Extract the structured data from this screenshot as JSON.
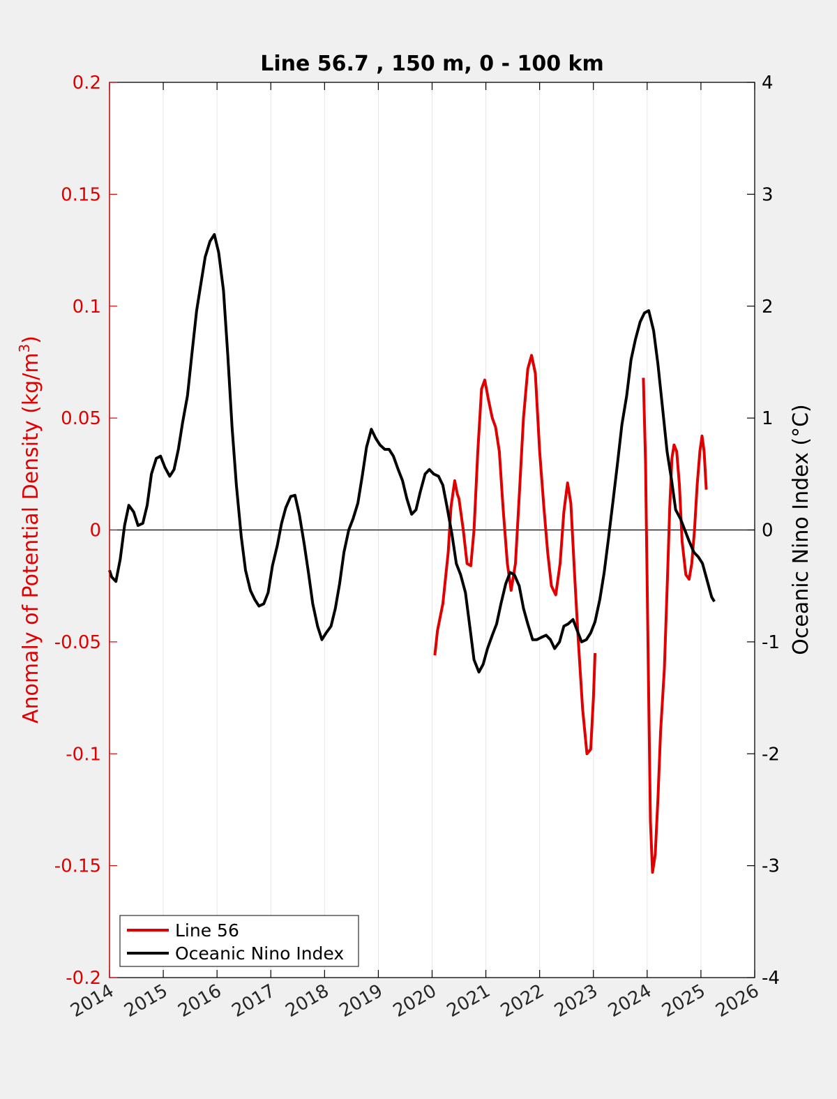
{
  "chart_data": {
    "type": "line",
    "title": "Line 56.7 , 150 m, 0 - 100 km",
    "xlabel": "",
    "ylabel_left": "Anomaly of Potential Density (kg/m",
    "ylabel_left_sup": "3",
    "ylabel_left_close": ")",
    "ylabel_right": "Oceanic Nino Index (°C)",
    "xlim": [
      2014,
      2026
    ],
    "ylim_left": [
      -0.2,
      0.2
    ],
    "ylim_right": [
      -4,
      4
    ],
    "x_ticks": [
      "2014",
      "2015",
      "2016",
      "2017",
      "2018",
      "2019",
      "2020",
      "2021",
      "2022",
      "2023",
      "2024",
      "2025",
      "2026"
    ],
    "y_ticks_left": [
      "0.2",
      "0.15",
      "0.1",
      "0.05",
      "0",
      "-0.05",
      "-0.1",
      "-0.15",
      "-0.2"
    ],
    "y_ticks_right": [
      "4",
      "3",
      "2",
      "1",
      "0",
      "-1",
      "-2",
      "-3",
      "-4"
    ],
    "grid": "vertical",
    "zero_line": true,
    "legend_position": "bottom-left",
    "series": [
      {
        "name": "Line 56",
        "axis": "left",
        "color": "#e00000",
        "segments": [
          [
            [
              2020.05,
              -0.056
            ],
            [
              2020.1,
              -0.045
            ],
            [
              2020.2,
              -0.033
            ],
            [
              2020.3,
              -0.01
            ],
            [
              2020.35,
              0.01
            ],
            [
              2020.42,
              0.022
            ],
            [
              2020.47,
              0.016
            ],
            [
              2020.5,
              0.014
            ],
            [
              2020.58,
              0.0
            ],
            [
              2020.65,
              -0.015
            ],
            [
              2020.72,
              -0.016
            ],
            [
              2020.78,
              0.0
            ],
            [
              2020.85,
              0.035
            ],
            [
              2020.92,
              0.063
            ],
            [
              2020.98,
              0.067
            ],
            [
              2021.05,
              0.058
            ],
            [
              2021.12,
              0.05
            ],
            [
              2021.18,
              0.046
            ],
            [
              2021.25,
              0.035
            ],
            [
              2021.32,
              0.01
            ],
            [
              2021.4,
              -0.015
            ],
            [
              2021.47,
              -0.027
            ],
            [
              2021.55,
              -0.015
            ],
            [
              2021.62,
              0.015
            ],
            [
              2021.7,
              0.05
            ],
            [
              2021.78,
              0.072
            ],
            [
              2021.85,
              0.078
            ],
            [
              2021.92,
              0.07
            ],
            [
              2022.0,
              0.035
            ],
            [
              2022.08,
              0.01
            ],
            [
              2022.15,
              -0.01
            ],
            [
              2022.22,
              -0.025
            ],
            [
              2022.3,
              -0.029
            ],
            [
              2022.38,
              -0.015
            ],
            [
              2022.45,
              0.008
            ],
            [
              2022.52,
              0.021
            ],
            [
              2022.58,
              0.012
            ],
            [
              2022.65,
              -0.02
            ],
            [
              2022.72,
              -0.05
            ],
            [
              2022.8,
              -0.08
            ],
            [
              2022.88,
              -0.1
            ],
            [
              2022.95,
              -0.098
            ],
            [
              2023.0,
              -0.075
            ],
            [
              2023.03,
              -0.055
            ]
          ],
          [
            [
              2023.93,
              0.068
            ],
            [
              2023.97,
              0.03
            ],
            [
              2024.02,
              -0.06
            ],
            [
              2024.06,
              -0.13
            ],
            [
              2024.1,
              -0.153
            ],
            [
              2024.15,
              -0.145
            ],
            [
              2024.2,
              -0.12
            ],
            [
              2024.25,
              -0.09
            ],
            [
              2024.32,
              -0.062
            ],
            [
              2024.38,
              -0.02
            ],
            [
              2024.42,
              0.01
            ],
            [
              2024.46,
              0.032
            ],
            [
              2024.5,
              0.038
            ],
            [
              2024.55,
              0.035
            ],
            [
              2024.6,
              0.02
            ],
            [
              2024.65,
              -0.005
            ],
            [
              2024.72,
              -0.02
            ],
            [
              2024.78,
              -0.022
            ],
            [
              2024.83,
              -0.015
            ],
            [
              2024.88,
              0.0
            ],
            [
              2024.93,
              0.02
            ],
            [
              2024.98,
              0.035
            ],
            [
              2025.02,
              0.042
            ],
            [
              2025.06,
              0.035
            ],
            [
              2025.1,
              0.018
            ]
          ]
        ]
      },
      {
        "name": "Oceanic Nino Index",
        "axis": "right",
        "color": "#000000",
        "segments": [
          [
            [
              2014.0,
              -0.36
            ],
            [
              2014.04,
              -0.42
            ],
            [
              2014.12,
              -0.46
            ],
            [
              2014.2,
              -0.26
            ],
            [
              2014.28,
              0.04
            ],
            [
              2014.36,
              0.22
            ],
            [
              2014.45,
              0.16
            ],
            [
              2014.53,
              0.04
            ],
            [
              2014.62,
              0.06
            ],
            [
              2014.7,
              0.22
            ],
            [
              2014.78,
              0.5
            ],
            [
              2014.87,
              0.64
            ],
            [
              2014.95,
              0.66
            ],
            [
              2015.03,
              0.56
            ],
            [
              2015.12,
              0.48
            ],
            [
              2015.2,
              0.54
            ],
            [
              2015.28,
              0.72
            ],
            [
              2015.36,
              0.96
            ],
            [
              2015.45,
              1.2
            ],
            [
              2015.53,
              1.56
            ],
            [
              2015.62,
              1.96
            ],
            [
              2015.7,
              2.2
            ],
            [
              2015.78,
              2.44
            ],
            [
              2015.87,
              2.58
            ],
            [
              2015.95,
              2.64
            ],
            [
              2016.03,
              2.48
            ],
            [
              2016.12,
              2.14
            ],
            [
              2016.2,
              1.56
            ],
            [
              2016.28,
              0.92
            ],
            [
              2016.36,
              0.4
            ],
            [
              2016.45,
              -0.06
            ],
            [
              2016.53,
              -0.36
            ],
            [
              2016.62,
              -0.54
            ],
            [
              2016.7,
              -0.62
            ],
            [
              2016.78,
              -0.68
            ],
            [
              2016.87,
              -0.66
            ],
            [
              2016.95,
              -0.56
            ],
            [
              2017.03,
              -0.32
            ],
            [
              2017.12,
              -0.14
            ],
            [
              2017.2,
              0.06
            ],
            [
              2017.28,
              0.2
            ],
            [
              2017.37,
              0.3
            ],
            [
              2017.45,
              0.31
            ],
            [
              2017.53,
              0.14
            ],
            [
              2017.62,
              -0.12
            ],
            [
              2017.7,
              -0.38
            ],
            [
              2017.78,
              -0.66
            ],
            [
              2017.87,
              -0.86
            ],
            [
              2017.95,
              -0.98
            ],
            [
              2018.03,
              -0.92
            ],
            [
              2018.12,
              -0.86
            ],
            [
              2018.2,
              -0.7
            ],
            [
              2018.28,
              -0.48
            ],
            [
              2018.36,
              -0.2
            ],
            [
              2018.45,
              0.0
            ],
            [
              2018.53,
              0.1
            ],
            [
              2018.62,
              0.24
            ],
            [
              2018.7,
              0.48
            ],
            [
              2018.78,
              0.74
            ],
            [
              2018.87,
              0.9
            ],
            [
              2018.95,
              0.82
            ],
            [
              2019.03,
              0.76
            ],
            [
              2019.12,
              0.72
            ],
            [
              2019.2,
              0.72
            ],
            [
              2019.28,
              0.66
            ],
            [
              2019.37,
              0.54
            ],
            [
              2019.45,
              0.44
            ],
            [
              2019.53,
              0.28
            ],
            [
              2019.62,
              0.14
            ],
            [
              2019.7,
              0.18
            ],
            [
              2019.78,
              0.34
            ],
            [
              2019.87,
              0.5
            ],
            [
              2019.95,
              0.54
            ],
            [
              2020.03,
              0.5
            ],
            [
              2020.12,
              0.48
            ],
            [
              2020.2,
              0.4
            ],
            [
              2020.28,
              0.2
            ],
            [
              2020.37,
              -0.04
            ],
            [
              2020.45,
              -0.3
            ],
            [
              2020.53,
              -0.4
            ],
            [
              2020.62,
              -0.56
            ],
            [
              2020.7,
              -0.86
            ],
            [
              2020.78,
              -1.16
            ],
            [
              2020.87,
              -1.27
            ],
            [
              2020.95,
              -1.2
            ],
            [
              2021.03,
              -1.06
            ],
            [
              2021.12,
              -0.94
            ],
            [
              2021.2,
              -0.84
            ],
            [
              2021.28,
              -0.66
            ],
            [
              2021.37,
              -0.48
            ],
            [
              2021.45,
              -0.38
            ],
            [
              2021.53,
              -0.4
            ],
            [
              2021.62,
              -0.5
            ],
            [
              2021.7,
              -0.7
            ],
            [
              2021.78,
              -0.84
            ],
            [
              2021.87,
              -0.98
            ],
            [
              2021.95,
              -0.98
            ],
            [
              2022.03,
              -0.96
            ],
            [
              2022.12,
              -0.94
            ],
            [
              2022.2,
              -0.98
            ],
            [
              2022.28,
              -1.06
            ],
            [
              2022.37,
              -1.0
            ],
            [
              2022.45,
              -0.86
            ],
            [
              2022.53,
              -0.84
            ],
            [
              2022.62,
              -0.8
            ],
            [
              2022.7,
              -0.9
            ],
            [
              2022.78,
              -1.0
            ],
            [
              2022.87,
              -0.98
            ],
            [
              2022.95,
              -0.92
            ],
            [
              2023.03,
              -0.82
            ],
            [
              2023.12,
              -0.62
            ],
            [
              2023.2,
              -0.38
            ],
            [
              2023.28,
              -0.08
            ],
            [
              2023.37,
              0.28
            ],
            [
              2023.45,
              0.6
            ],
            [
              2023.53,
              0.94
            ],
            [
              2023.62,
              1.2
            ],
            [
              2023.7,
              1.52
            ],
            [
              2023.78,
              1.7
            ],
            [
              2023.87,
              1.86
            ],
            [
              2023.95,
              1.94
            ],
            [
              2024.03,
              1.96
            ],
            [
              2024.12,
              1.78
            ],
            [
              2024.2,
              1.48
            ],
            [
              2024.28,
              1.12
            ],
            [
              2024.37,
              0.7
            ],
            [
              2024.45,
              0.46
            ],
            [
              2024.53,
              0.18
            ],
            [
              2024.62,
              0.1
            ],
            [
              2024.7,
              0.0
            ],
            [
              2024.78,
              -0.1
            ],
            [
              2024.87,
              -0.2
            ],
            [
              2024.95,
              -0.24
            ],
            [
              2025.03,
              -0.3
            ],
            [
              2025.12,
              -0.46
            ],
            [
              2025.2,
              -0.6
            ],
            [
              2025.25,
              -0.64
            ]
          ]
        ]
      }
    ]
  },
  "legend": {
    "items": [
      {
        "label": "Line 56",
        "color": "#e00000"
      },
      {
        "label": "Oceanic Nino Index",
        "color": "#000000"
      }
    ]
  },
  "colors": {
    "background": "#f0f0f0",
    "plot_background": "#ffffff",
    "left_axis": "#e00000",
    "right_axis": "#000000",
    "grid": "#e6e6e6"
  }
}
